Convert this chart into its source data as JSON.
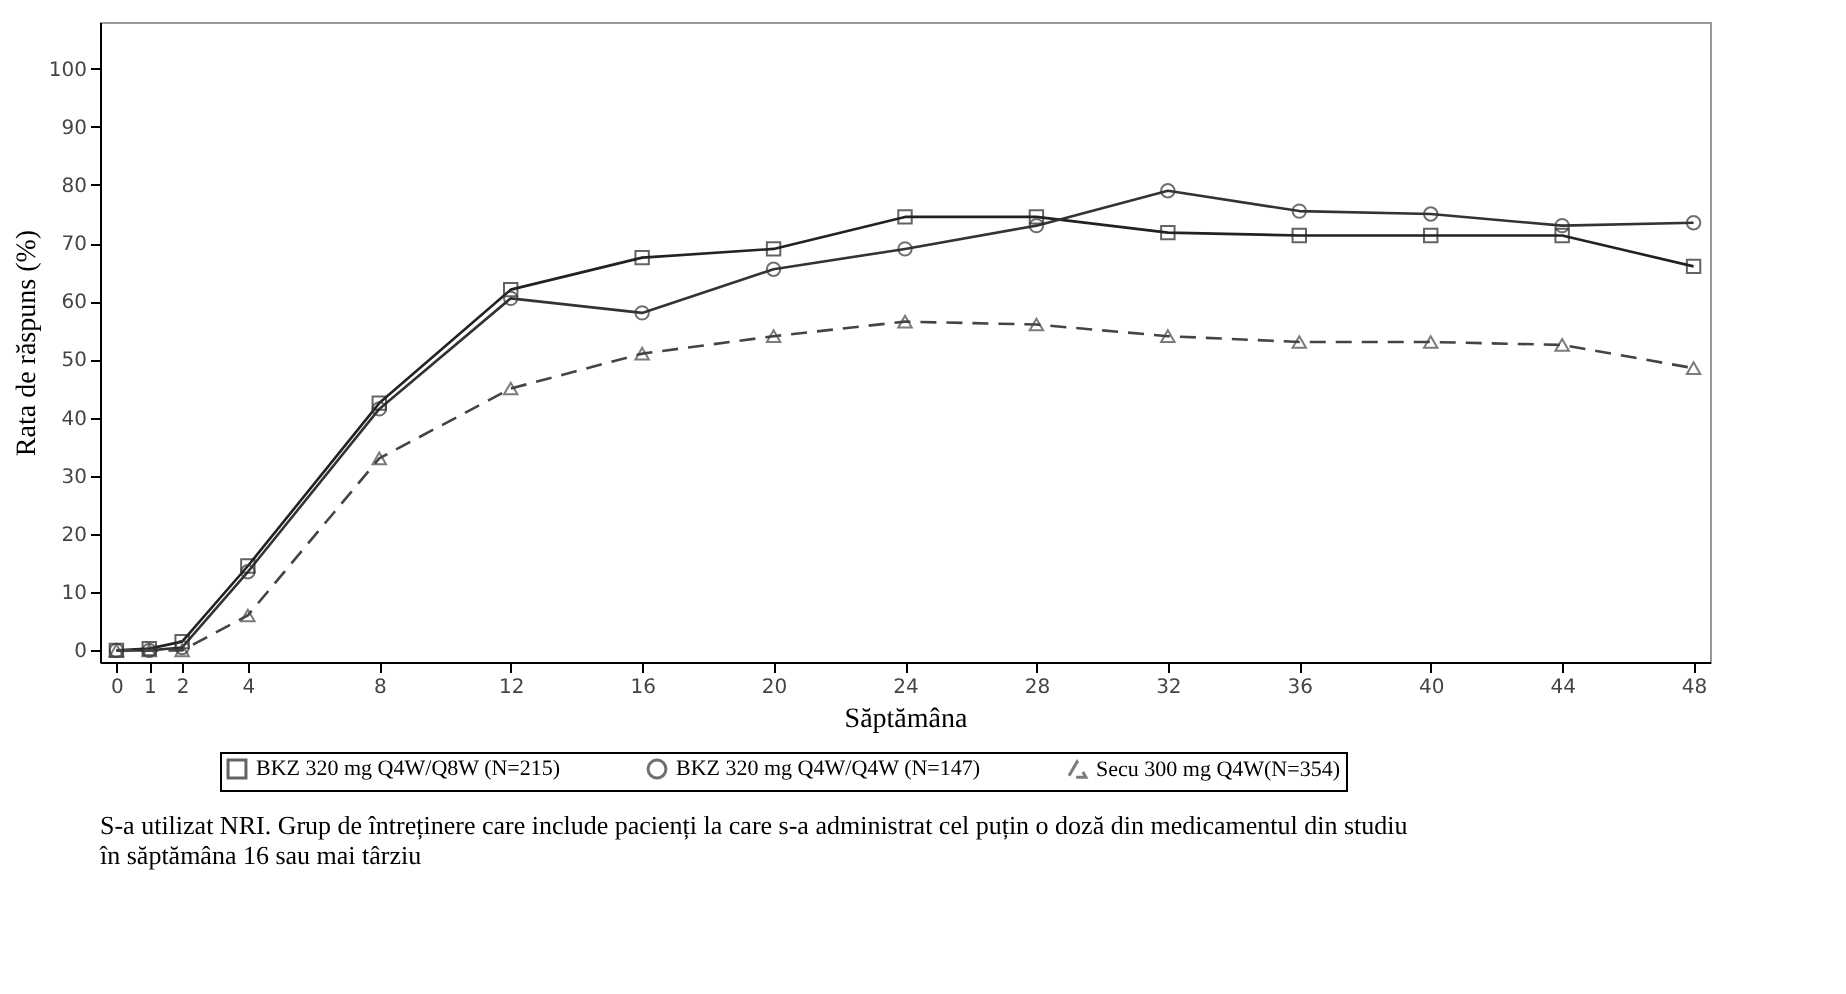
{
  "chart_data": {
    "type": "line",
    "xlabel": "Săptămâna",
    "ylabel": "Rata de răspuns (%)",
    "x": [
      0,
      1,
      2,
      4,
      8,
      12,
      16,
      20,
      24,
      28,
      32,
      36,
      40,
      44,
      48
    ],
    "xlim": [
      -0.5,
      48.5
    ],
    "xticks": [
      0,
      1,
      2,
      4,
      8,
      12,
      16,
      20,
      24,
      28,
      32,
      36,
      40,
      44,
      48
    ],
    "ylim": [
      -2,
      108
    ],
    "yticks": [
      0,
      10,
      20,
      30,
      40,
      50,
      60,
      70,
      80,
      90,
      100
    ],
    "grid": false,
    "legend": "bottom",
    "series": [
      {
        "name": "BKZ 320 mg Q4W/Q8W (N=215)",
        "color": "#222222",
        "marker": "square",
        "line_style": "solid",
        "values": [
          0,
          0.3,
          1.5,
          14.5,
          42.5,
          62,
          67.5,
          69,
          74.5,
          74.5,
          71.8,
          71.3,
          71.3,
          71.3,
          66
        ]
      },
      {
        "name": "BKZ 320 mg Q4W/Q4W (N=147)",
        "color": "#333333",
        "marker": "circle",
        "line_style": "solid",
        "values": [
          0,
          0,
          0.5,
          13.5,
          41.5,
          60.5,
          58,
          65.5,
          69,
          73,
          79,
          75.5,
          75,
          73,
          73.5
        ]
      },
      {
        "name": "Secu 300 mg Q4W(N=354)",
        "color": "#444444",
        "marker": "triangle",
        "line_style": "dashed",
        "values": [
          0,
          0,
          0,
          6,
          33,
          45,
          51,
          54,
          56.5,
          56,
          54,
          53,
          53,
          52.5,
          48.5
        ]
      }
    ],
    "annotations": [
      "S-a utilizat NRI. Grup de întreținere care include pacienți la care s-a administrat cel puțin o doză din medicamentul din studiu\nîn săptămâna 16 sau mai târziu"
    ]
  }
}
